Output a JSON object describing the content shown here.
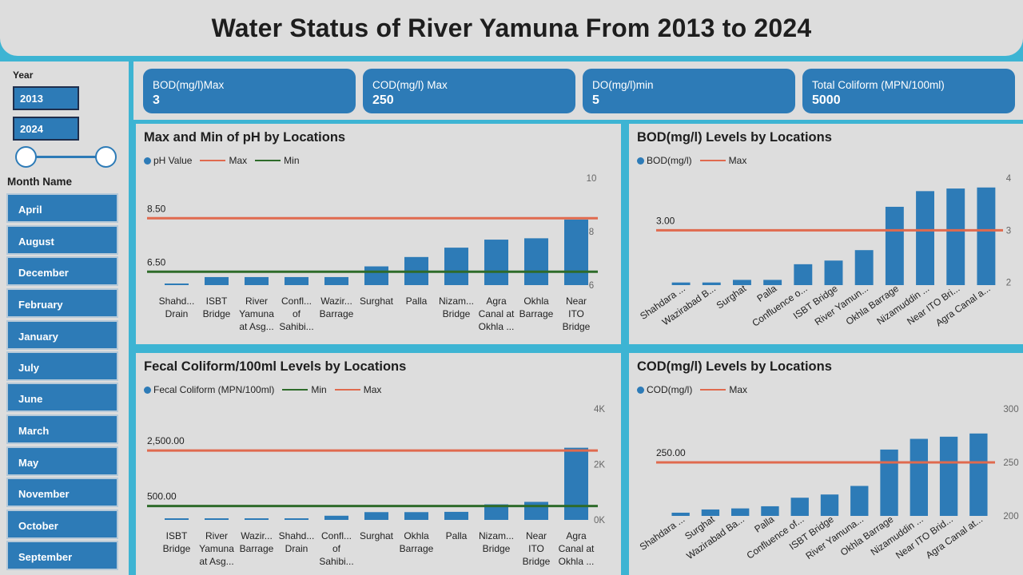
{
  "title": "Water Status of River Yamuna From 2013 to 2024",
  "sidebar": {
    "year_label": "Year",
    "year_from": "2013",
    "year_to": "2024",
    "month_label": "Month Name",
    "months": [
      "April",
      "August",
      "December",
      "February",
      "January",
      "July",
      "June",
      "March",
      "May",
      "November",
      "October",
      "September"
    ]
  },
  "kpis": [
    {
      "title": "BOD(mg/l)Max",
      "value": "3"
    },
    {
      "title": "COD(mg/l) Max",
      "value": "250"
    },
    {
      "title": "DO(mg/l)min",
      "value": "5"
    },
    {
      "title": "Total Coliform (MPN/100ml)",
      "value": "5000"
    }
  ],
  "colors": {
    "bar": "#2D7BB7",
    "max_line": "#E06A4E",
    "min_line": "#2E6B2A",
    "background": "#3DB4D3",
    "panel": "#DDDDDD"
  },
  "panels": {
    "ph": {
      "title": "Max and Min of pH by Locations",
      "legend": [
        "pH Value",
        "Max",
        "Min"
      ]
    },
    "bod": {
      "title": "BOD(mg/l) Levels by Locations",
      "legend": [
        "BOD(mg/l)",
        "Max"
      ]
    },
    "fecal": {
      "title": "Fecal Coliform/100ml Levels by Locations",
      "legend": [
        "Fecal Coliform (MPN/100ml)",
        "Min",
        "Max"
      ]
    },
    "cod": {
      "title": "COD(mg/l) Levels by Locations",
      "legend": [
        "COD(mg/l)",
        "Max"
      ]
    }
  },
  "chart_data": [
    {
      "id": "ph",
      "type": "bar",
      "title": "Max and Min of pH by Locations",
      "categories": [
        [
          "Shahd...",
          "Drain"
        ],
        [
          "ISBT",
          "Bridge"
        ],
        [
          "River",
          "Yamuna",
          "at Asg..."
        ],
        [
          "Confl...",
          "of",
          "Sahibi..."
        ],
        [
          "Wazir...",
          "Barrage"
        ],
        [
          "Surghat"
        ],
        [
          "Palla"
        ],
        [
          "Nizam...",
          "Bridge"
        ],
        [
          "Agra",
          "Canal at",
          "Okhla ..."
        ],
        [
          "Okhla",
          "Barrage"
        ],
        [
          "Near",
          "ITO",
          "Bridge"
        ]
      ],
      "series": [
        {
          "name": "pH Value",
          "values": [
            6.05,
            6.3,
            6.3,
            6.3,
            6.3,
            6.7,
            7.05,
            7.4,
            7.7,
            7.75,
            8.45
          ]
        }
      ],
      "reference_lines": [
        {
          "name": "Max",
          "value": 8.5,
          "label": "8.50"
        },
        {
          "name": "Min",
          "value": 6.5,
          "label": "6.50"
        }
      ],
      "ylim": [
        6,
        10
      ],
      "yticks": [
        {
          "v": 10,
          "l": "10"
        },
        {
          "v": 8,
          "l": "8"
        },
        {
          "v": 6,
          "l": "6"
        }
      ],
      "axis_side": "right",
      "label_rotation": 0
    },
    {
      "id": "bod",
      "type": "bar",
      "title": "BOD(mg/l) Levels by Locations",
      "categories": [
        "Shahdara ...",
        "Wazirabad B...",
        "Surghat",
        "Palla",
        "Confluence o...",
        "ISBT Bridge",
        "River Yamun...",
        "Okhla Barrage",
        "Nizamuddin ...",
        "Near ITO Bri...",
        "Agra Canal a..."
      ],
      "series": [
        {
          "name": "BOD(mg/l)",
          "values": [
            2.0,
            2.0,
            2.05,
            2.05,
            2.35,
            2.42,
            2.62,
            3.45,
            3.75,
            3.8,
            3.82
          ]
        }
      ],
      "reference_lines": [
        {
          "name": "Max",
          "value": 3,
          "label": "3.00"
        }
      ],
      "ylim": [
        1.95,
        4
      ],
      "yticks": [
        {
          "v": 4,
          "l": "4"
        },
        {
          "v": 3,
          "l": "3"
        },
        {
          "v": 2,
          "l": "2"
        }
      ],
      "axis_side": "right",
      "label_rotation": -35
    },
    {
      "id": "fecal",
      "type": "bar",
      "title": "Fecal Coliform/100ml Levels by Locations",
      "categories": [
        [
          "ISBT",
          "Bridge"
        ],
        [
          "River",
          "Yamuna",
          "at Asg..."
        ],
        [
          "Wazir...",
          "Barrage"
        ],
        [
          "Shahd...",
          "Drain"
        ],
        [
          "Confl...",
          "of",
          "Sahibi..."
        ],
        [
          "Surghat"
        ],
        [
          "Okhla",
          "Barrage"
        ],
        [
          "Palla"
        ],
        [
          "Nizam...",
          "Bridge"
        ],
        [
          "Near",
          "ITO",
          "Bridge"
        ],
        [
          "Agra",
          "Canal at",
          "Okhla ..."
        ]
      ],
      "series": [
        {
          "name": "Fecal Coliform (MPN/100ml)",
          "values": [
            30,
            30,
            30,
            30,
            150,
            280,
            280,
            290,
            560,
            650,
            2600
          ]
        }
      ],
      "reference_lines": [
        {
          "name": "Max",
          "value": 2500,
          "label": "2,500.00"
        },
        {
          "name": "Min",
          "value": 500,
          "label": "500.00"
        }
      ],
      "ylim": [
        0,
        4000
      ],
      "yticks": [
        {
          "v": 4000,
          "l": "4K"
        },
        {
          "v": 2000,
          "l": "2K"
        },
        {
          "v": 0,
          "l": "0K"
        }
      ],
      "axis_side": "right",
      "label_rotation": 0
    },
    {
      "id": "cod",
      "type": "bar",
      "title": "COD(mg/l) Levels by Locations",
      "categories": [
        "Shahdara ...",
        "Surghat",
        "Wazirabad Ba...",
        "Palla",
        "Confluence of...",
        "ISBT Bridge",
        "River Yamuna...",
        "Okhla Barrage",
        "Nizamuddin ...",
        "Near ITO Brid...",
        "Agra Canal at..."
      ],
      "series": [
        {
          "name": "COD(mg/l)",
          "values": [
            203,
            206,
            207,
            209,
            217,
            220,
            228,
            262,
            272,
            274,
            277
          ]
        }
      ],
      "reference_lines": [
        {
          "name": "Max",
          "value": 250,
          "label": "250.00"
        }
      ],
      "ylim": [
        200,
        300
      ],
      "yticks": [
        {
          "v": 300,
          "l": "300"
        },
        {
          "v": 250,
          "l": "250"
        },
        {
          "v": 200,
          "l": "200"
        }
      ],
      "axis_side": "right",
      "label_rotation": -35
    }
  ]
}
